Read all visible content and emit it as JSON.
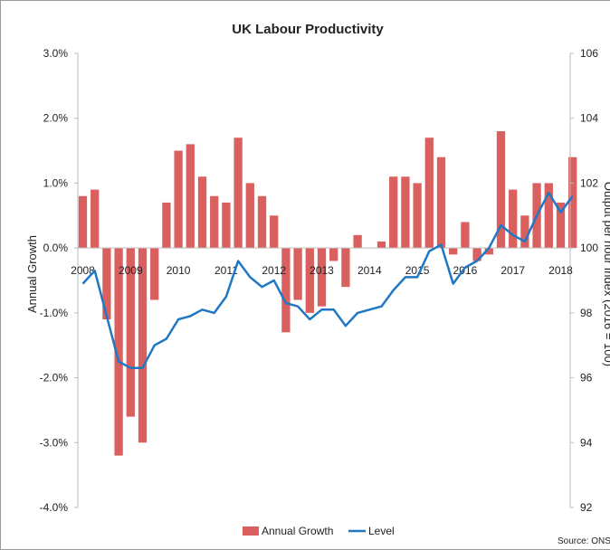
{
  "chart_data": {
    "type": "bar+line",
    "title": "UK Labour Productivity",
    "ylabel": "Annual Growth",
    "y2label": "Output per hour Index (2016 = 100)",
    "source": "Source: ONS",
    "ylim": [
      -4,
      3
    ],
    "y2lim": [
      92,
      106
    ],
    "y_ticks": [
      "3.0%",
      "2.0%",
      "1.0%",
      "0.0%",
      "-1.0%",
      "-2.0%",
      "-3.0%",
      "-4.0%"
    ],
    "y2_ticks": [
      "106",
      "104",
      "102",
      "100",
      "98",
      "96",
      "94",
      "92"
    ],
    "x_labels": [
      "2008",
      "2009",
      "2010",
      "2011",
      "2012",
      "2013",
      "2014",
      "2015",
      "2016",
      "2017",
      "2018"
    ],
    "quarters": [
      "2008Q1",
      "2008Q2",
      "2008Q3",
      "2008Q4",
      "2009Q1",
      "2009Q2",
      "2009Q3",
      "2009Q4",
      "2010Q1",
      "2010Q2",
      "2010Q3",
      "2010Q4",
      "2011Q1",
      "2011Q2",
      "2011Q3",
      "2011Q4",
      "2012Q1",
      "2012Q2",
      "2012Q3",
      "2012Q4",
      "2013Q1",
      "2013Q2",
      "2013Q3",
      "2013Q4",
      "2014Q1",
      "2014Q2",
      "2014Q3",
      "2014Q4",
      "2015Q1",
      "2015Q2",
      "2015Q3",
      "2015Q4",
      "2016Q1",
      "2016Q2",
      "2016Q3",
      "2016Q4",
      "2017Q1",
      "2017Q2",
      "2017Q3",
      "2017Q4",
      "2018Q1",
      "2018Q2",
      "2018Q3",
      "2018Q4"
    ],
    "series": [
      {
        "name": "Annual Growth",
        "kind": "bar",
        "color": "#d9605f",
        "values": [
          0.8,
          0.9,
          -1.1,
          -3.2,
          -2.6,
          -3.0,
          -0.8,
          0.7,
          1.5,
          1.6,
          1.1,
          0.8,
          0.7,
          1.7,
          1.0,
          0.8,
          0.5,
          -1.3,
          -0.8,
          -1.0,
          -0.9,
          -0.2,
          -0.6,
          0.2,
          0.0,
          0.1,
          1.1,
          1.1,
          1.0,
          1.7,
          1.4,
          -0.1,
          0.4,
          -0.2,
          -0.1,
          1.8,
          0.9,
          0.5,
          1.0,
          1.0,
          0.7,
          1.4
        ]
      },
      {
        "name": "Level",
        "kind": "line",
        "color": "#1f78c4",
        "values": [
          98.9,
          99.3,
          97.9,
          96.5,
          96.3,
          96.3,
          97.0,
          97.2,
          97.8,
          97.9,
          98.1,
          98.0,
          98.5,
          99.6,
          99.1,
          98.8,
          99.0,
          98.3,
          98.2,
          97.8,
          98.1,
          98.1,
          97.6,
          98.0,
          98.1,
          98.2,
          98.7,
          99.1,
          99.1,
          99.9,
          100.1,
          98.9,
          99.4,
          99.6,
          100.0,
          100.7,
          100.4,
          100.2,
          101.0,
          101.7,
          101.1,
          101.6
        ]
      }
    ],
    "legend_position": "bottom",
    "grid": false,
    "colors": {
      "bar": "#d9605f",
      "line": "#1f78c4",
      "axis": "#bdbdbd"
    }
  }
}
